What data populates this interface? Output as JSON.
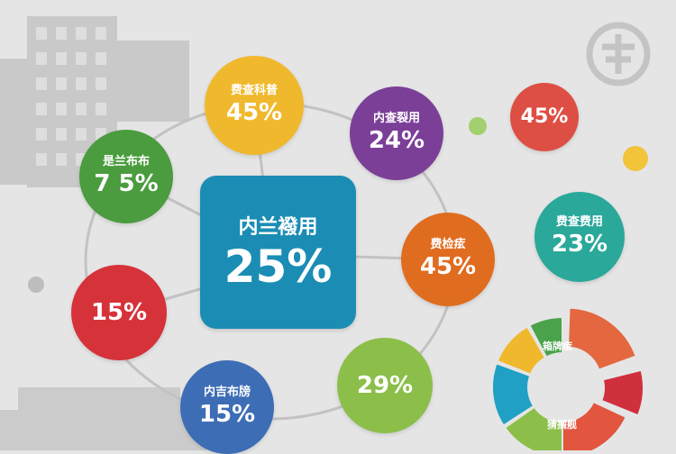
{
  "center": {
    "label": "内兰襏用",
    "value": "25%",
    "color": "#1b8db4"
  },
  "nodes": [
    {
      "label": "费查科普",
      "value": "45%",
      "color": "#f0b92d"
    },
    {
      "label": "内查裂用",
      "value": "24%",
      "color": "#7b3f98"
    },
    {
      "label": "是兰布布",
      "value": "7 5%",
      "color": "#4a9c3e"
    },
    {
      "label": "费检痃",
      "value": "45%",
      "color": "#e06c1f"
    },
    {
      "label": "",
      "value": "15%",
      "color": "#d6323a"
    },
    {
      "label": "内吉布牓",
      "value": "15%",
      "color": "#3d6db5"
    },
    {
      "label": "",
      "value": "29%",
      "color": "#8cbf4a"
    },
    {
      "label": "",
      "value": "45%",
      "color": "#dd4f44"
    },
    {
      "label": "费查费用",
      "value": "23%",
      "color": "#2aa89a"
    }
  ],
  "donut": {
    "labels": [
      "箱牌痃",
      "猜搁舰"
    ],
    "segments": [
      {
        "color": "#e4673f",
        "exploded": true
      },
      {
        "color": "#d0303d",
        "exploded": true
      },
      {
        "color": "#e2553f"
      },
      {
        "color": "#8cbf4a"
      },
      {
        "color": "#1fa0c4"
      },
      {
        "color": "#f0b92d"
      },
      {
        "color": "#4aa24a"
      }
    ]
  },
  "icons": [
    "building-icon",
    "logo-seal-icon"
  ]
}
